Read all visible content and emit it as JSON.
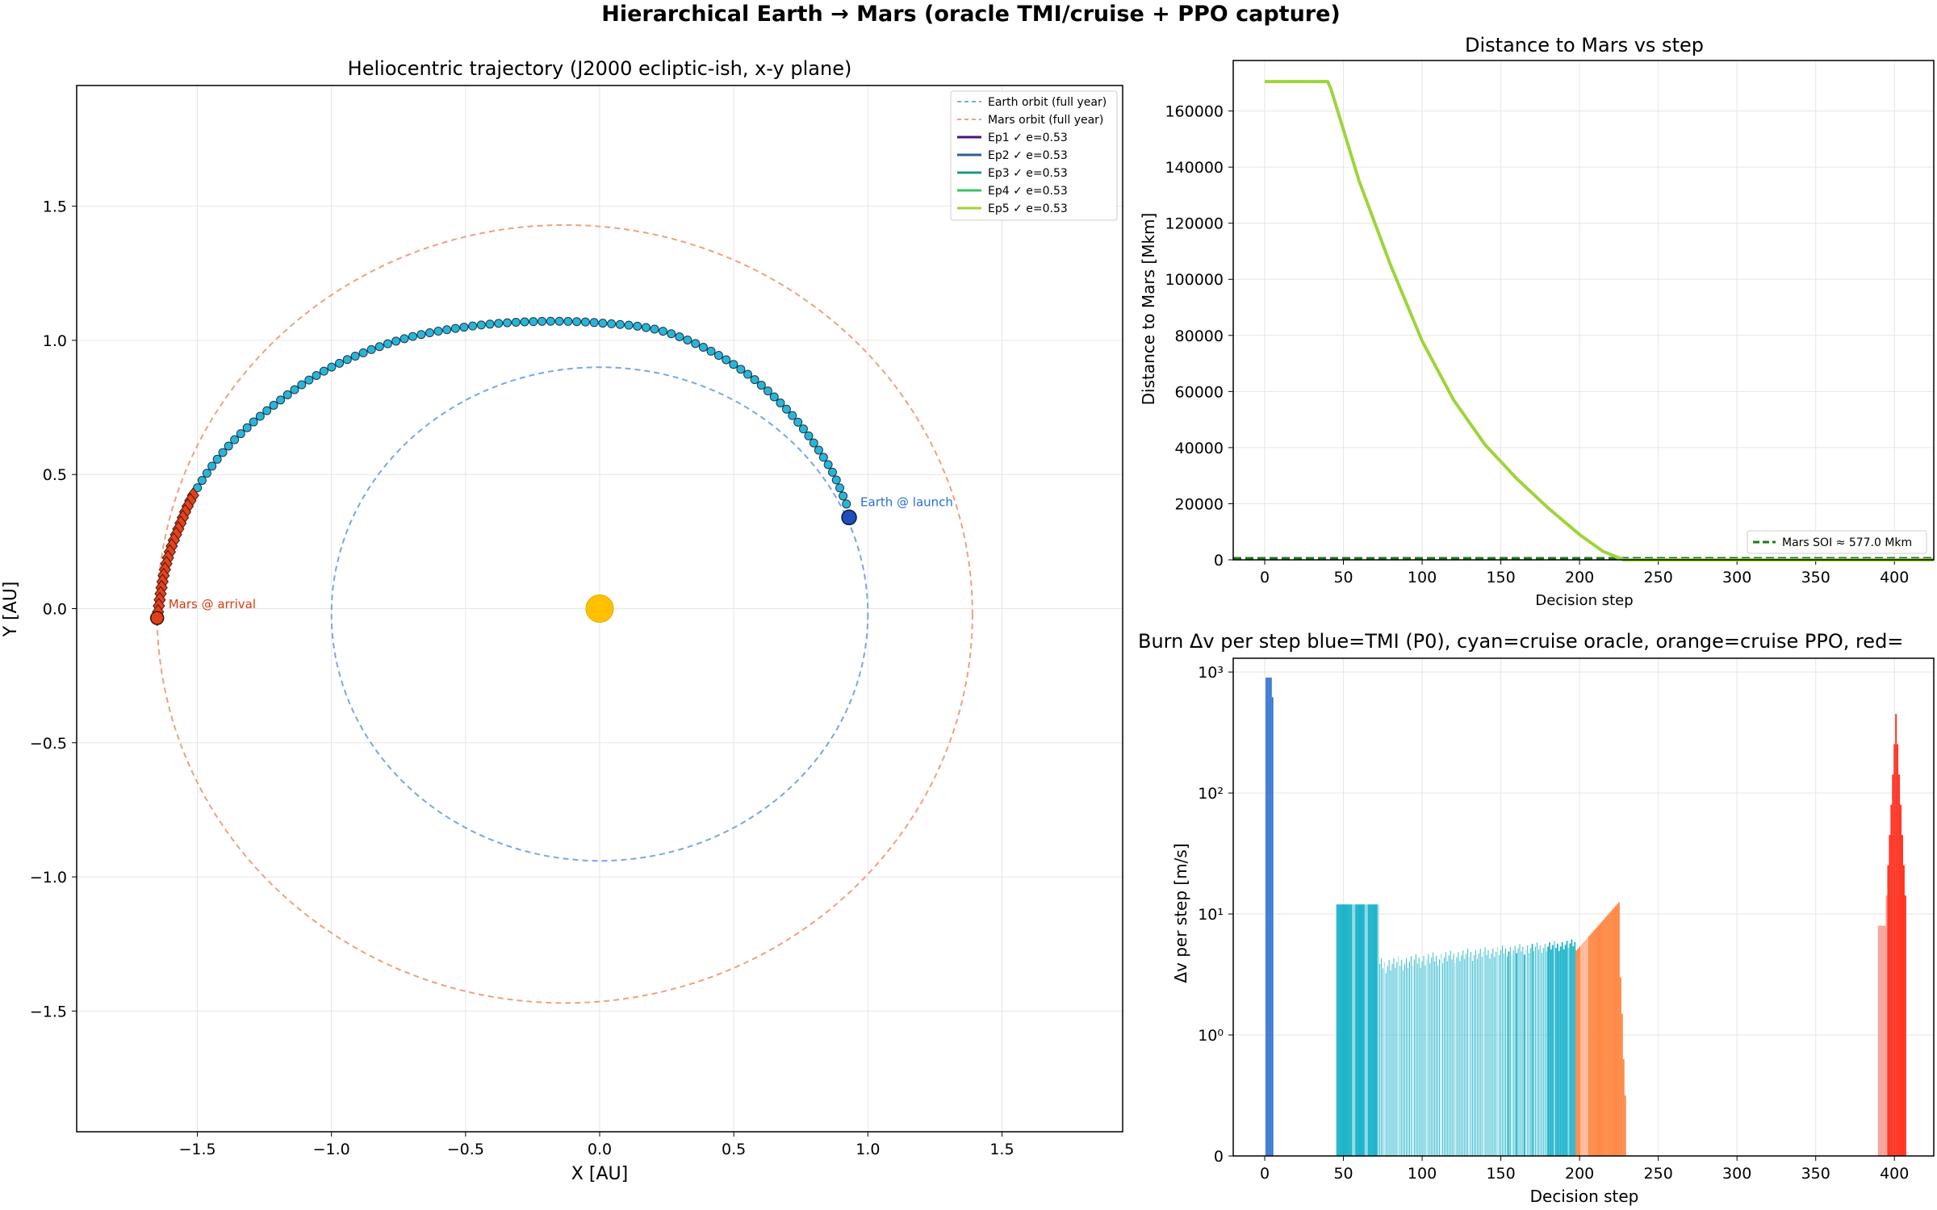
{
  "figure": {
    "suptitle": "Hierarchical Earth → Mars (oracle TMI/cruise + PPO capture)"
  },
  "chart_data": [
    {
      "type": "line",
      "title": "Heliocentric trajectory  (J2000 ecliptic-ish, x-y plane)",
      "xlabel": "X  [AU]",
      "ylabel": "Y  [AU]",
      "xlim": [
        -1.95,
        1.95
      ],
      "ylim": [
        -1.95,
        1.95
      ],
      "xticks": [
        -1.5,
        -1.0,
        -0.5,
        0.0,
        0.5,
        1.0,
        1.5
      ],
      "yticks": [
        -1.5,
        -1.0,
        -0.5,
        0.0,
        0.5,
        1.0,
        1.5
      ],
      "xtick_labels": [
        "−1.5",
        "−1.0",
        "−0.5",
        "0.0",
        "0.5",
        "1.0",
        "1.5"
      ],
      "ytick_labels": [
        "−1.5",
        "−1.0",
        "−0.5",
        "0.0",
        "0.5",
        "1.0",
        "1.5"
      ],
      "grid": true,
      "legend_placement": "top-right",
      "earth_orbit": {
        "name": "Earth orbit (full year)",
        "cx": 0.0,
        "cy": -0.02,
        "rx": 1.0,
        "ry": 0.92,
        "color": "#7aa6e6"
      },
      "mars_orbit": {
        "name": "Mars orbit (full year)",
        "cx": -0.13,
        "cy": -0.02,
        "rx": 1.52,
        "ry": 1.45,
        "color": "#f0a080"
      },
      "sun": {
        "x": 0.0,
        "y": 0.0,
        "color": "#ffc000"
      },
      "earth_marker": {
        "label": "Earth @ launch",
        "x": 0.93,
        "y": 0.34,
        "color": "#1f4fb8",
        "label_color": "#2a6fd0"
      },
      "mars_marker": {
        "label": "Mars @ arrival",
        "x": -1.65,
        "y": -0.035,
        "color": "#e0401a",
        "label_color": "#d83a14"
      },
      "series": [
        {
          "name": "Ep1 ✓  e=0.53",
          "color": "#44157a"
        },
        {
          "name": "Ep2 ✓  e=0.53",
          "color": "#315f8d"
        },
        {
          "name": "Ep3 ✓  e=0.53",
          "color": "#1e9788"
        },
        {
          "name": "Ep4 ✓  e=0.53",
          "color": "#3dbf67"
        },
        {
          "name": "Ep5 ✓  e=0.53",
          "color": "#9ed43a"
        }
      ],
      "trajectory": [
        [
          0.92,
          0.39
        ],
        [
          0.85,
          0.54
        ],
        [
          0.7,
          0.74
        ],
        [
          0.5,
          0.91
        ],
        [
          0.25,
          1.03
        ],
        [
          0.0,
          1.065
        ],
        [
          -0.25,
          1.07
        ],
        [
          -0.5,
          1.05
        ],
        [
          -0.75,
          1.0
        ],
        [
          -1.0,
          0.9
        ],
        [
          -1.2,
          0.77
        ],
        [
          -1.38,
          0.61
        ],
        [
          -1.5,
          0.45
        ],
        [
          -1.57,
          0.3
        ],
        [
          -1.62,
          0.15
        ],
        [
          -1.65,
          -0.035
        ]
      ],
      "cruise_points": {
        "count": 92,
        "color": "#29b6d6"
      },
      "capture_points": {
        "count": 22,
        "color": "#e8401a"
      }
    },
    {
      "type": "line",
      "title": "Distance to Mars vs step",
      "xlabel": "Decision step",
      "ylabel": "Distance to Mars  [Mkm]",
      "xlim": [
        -20,
        425
      ],
      "ylim": [
        0,
        178000
      ],
      "xticks": [
        0,
        50,
        100,
        150,
        200,
        250,
        300,
        350,
        400
      ],
      "yticks": [
        0,
        20000,
        40000,
        60000,
        80000,
        100000,
        120000,
        140000,
        160000
      ],
      "ytick_labels": [
        "0",
        "20000",
        "40000",
        "60000",
        "80000",
        "100000",
        "120000",
        "140000",
        "160000"
      ],
      "grid": true,
      "legend_placement": "lower-right",
      "series": [
        {
          "name": "",
          "color": "#9ed43a",
          "x": [
            0,
            40,
            42,
            60,
            80,
            100,
            120,
            140,
            160,
            180,
            200,
            215,
            228,
            250,
            300,
            350,
            425
          ],
          "y": [
            170500,
            170500,
            168000,
            135000,
            105000,
            78000,
            57000,
            41000,
            29000,
            18500,
            9000,
            3000,
            0,
            0,
            0,
            0,
            0
          ]
        }
      ],
      "soi_line": {
        "name": "Mars SOI ≈ 577.0 Mkm",
        "y": 577,
        "color": "#1a7a1a"
      }
    },
    {
      "type": "bar",
      "title": "Burn Δv per step  blue=TMI (P0), cyan=cruise oracle, orange=cruise PPO, red=",
      "xlabel": "Decision step",
      "ylabel": "Δv per step  [m/s]",
      "xlim": [
        -20,
        425
      ],
      "yscale": "symlog",
      "ylim": [
        0,
        1300
      ],
      "xticks": [
        0,
        50,
        100,
        150,
        200,
        250,
        300,
        350,
        400
      ],
      "ytick_labels": [
        "0",
        "10⁰",
        "10¹",
        "10²",
        "10³"
      ],
      "grid": true,
      "colors": {
        "tmi": "#2f6fd0",
        "oracle": "#1bb3c9",
        "oracle_light": "#8ad8e6",
        "ppo": "#ff8844",
        "ppo_light": "#ffbb99",
        "capture": "#ff3322",
        "capture_light": "#f5a39a"
      },
      "tmi_bars": [
        [
          1,
          900
        ],
        [
          2,
          900
        ],
        [
          3,
          900
        ],
        [
          4,
          900
        ],
        [
          5,
          620
        ]
      ],
      "oracle_solid": {
        "from": 46,
        "to": 72,
        "value": 12
      },
      "oracle_cruise": {
        "from": 73,
        "to": 197,
        "start_value": 3.6,
        "end_value": 5.5
      },
      "ppo_ramp": {
        "from": 198,
        "to": 225,
        "start_value": 5.0,
        "end_value": 12.5
      },
      "ppo_tail": [
        [
          226,
          3.0
        ],
        [
          227,
          1.5
        ],
        [
          228,
          0.8
        ],
        [
          229,
          0.5
        ]
      ],
      "capture": {
        "from": 390,
        "to": 407,
        "peak_step": 401,
        "peak_value": 450
      }
    }
  ]
}
